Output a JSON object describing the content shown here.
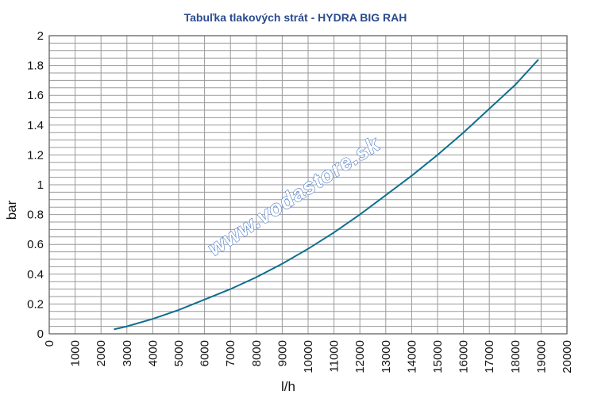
{
  "chart_data": {
    "type": "line",
    "title": "Tabuľka tlakových strát - HYDRA BIG RAH",
    "xlabel": "l/h",
    "ylabel": "bar",
    "xlim": [
      0,
      20000
    ],
    "ylim": [
      0,
      2
    ],
    "x_ticks": [
      "0",
      "1000",
      "2000",
      "3000",
      "4000",
      "5000",
      "6000",
      "7000",
      "8000",
      "9000",
      "10000",
      "11000",
      "12000",
      "13000",
      "14000",
      "15000",
      "16000",
      "17000",
      "18000",
      "19000",
      "20000"
    ],
    "y_ticks": [
      "0",
      "0.2",
      "0.4",
      "0.6",
      "0.8",
      "1",
      "1.2",
      "1.4",
      "1.6",
      "1.8",
      "2"
    ],
    "grid": true,
    "legend": "none",
    "series": [
      {
        "color": "#0e6f8e",
        "x": [
          2500,
          3000,
          4000,
          5000,
          6000,
          7000,
          8000,
          9000,
          10000,
          11000,
          12000,
          13000,
          14000,
          15000,
          16000,
          17000,
          18000,
          18900
        ],
        "y": [
          0.03,
          0.05,
          0.1,
          0.16,
          0.23,
          0.3,
          0.38,
          0.47,
          0.57,
          0.68,
          0.8,
          0.93,
          1.06,
          1.2,
          1.35,
          1.51,
          1.67,
          1.84
        ]
      }
    ]
  },
  "watermark": "www.vodastore.sk",
  "colors": {
    "title": "#2a4b8d",
    "line": "#0e6f8e",
    "grid": "#9a9a9a",
    "watermark": "#3b6fc4"
  }
}
